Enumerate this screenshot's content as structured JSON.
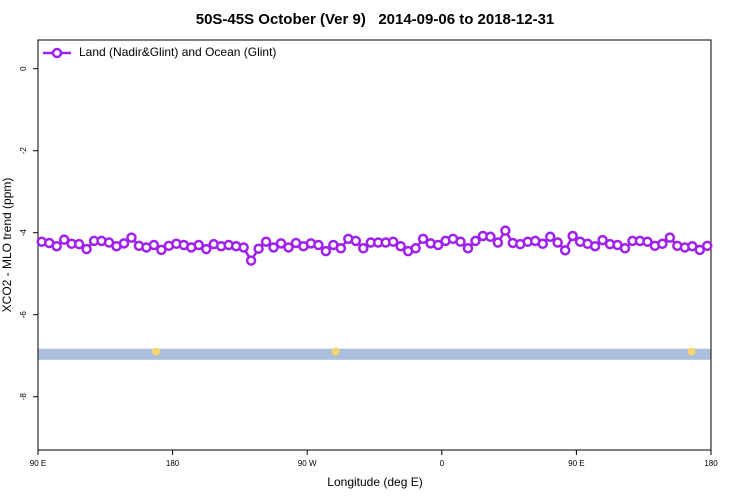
{
  "chart_data": {
    "type": "line",
    "title": "50S-45S October (Ver 9)   2014-09-06 to 2018-12-31",
    "x_label": "Longitude (deg E)",
    "y_label": "XCO2 - MLO trend (ppm)",
    "xlim": [
      90,
      540
    ],
    "xticks": [
      {
        "value": 90,
        "label": "90 E"
      },
      180,
      {
        "value": 270,
        "label": "90 W"
      },
      {
        "value": 360,
        "label": "0"
      },
      {
        "value": 450,
        "label": "90 E"
      },
      {
        "value": 540,
        "label": "180"
      }
    ],
    "ylim": [
      -9.3,
      0.7
    ],
    "yticks": [
      0,
      -2,
      -4,
      -6,
      -8
    ],
    "legend": "top-left",
    "x": [
      92.5,
      97.5,
      102.5,
      107.5,
      112.5,
      117.5,
      122.5,
      127.5,
      132.5,
      137.5,
      142.5,
      147.5,
      152.5,
      157.5,
      162.5,
      167.5,
      172.5,
      177.5,
      182.5,
      187.5,
      192.5,
      197.5,
      202.5,
      207.5,
      212.5,
      217.5,
      222.5,
      227.5,
      232.5,
      237.5,
      242.5,
      247.5,
      252.5,
      257.5,
      262.5,
      267.5,
      272.5,
      277.5,
      282.5,
      287.5,
      292.5,
      297.5,
      302.5,
      307.5,
      312.5,
      317.5,
      322.5,
      327.5,
      332.5,
      337.5,
      342.5,
      347.5,
      352.5,
      357.5,
      362.5,
      367.5,
      372.5,
      377.5,
      382.5,
      387.5,
      392.5,
      397.5,
      402.5,
      407.5,
      412.5,
      417.5,
      422.5,
      427.5,
      432.5,
      437.5,
      442.5,
      447.5,
      452.5,
      457.5,
      462.5,
      467.5,
      472.5,
      477.5,
      482.5,
      487.5,
      492.5,
      497.5,
      502.5,
      507.5,
      512.5,
      517.5,
      522.5,
      527.5,
      532.5,
      537.5
    ],
    "series": [
      {
        "name": "Land (Nadir&Glint) and Ocean (Glint)",
        "color": "#a020f0",
        "values": [
          -4.22,
          -4.25,
          -4.33,
          -4.17,
          -4.27,
          -4.28,
          -4.4,
          -4.2,
          -4.2,
          -4.24,
          -4.33,
          -4.26,
          -4.12,
          -4.32,
          -4.36,
          -4.3,
          -4.42,
          -4.32,
          -4.27,
          -4.3,
          -4.36,
          -4.3,
          -4.4,
          -4.28,
          -4.33,
          -4.3,
          -4.33,
          -4.36,
          -4.68,
          -4.39,
          -4.22,
          -4.36,
          -4.26,
          -4.36,
          -4.25,
          -4.33,
          -4.26,
          -4.3,
          -4.45,
          -4.3,
          -4.38,
          -4.15,
          -4.2,
          -4.38,
          -4.24,
          -4.24,
          -4.24,
          -4.22,
          -4.33,
          -4.45,
          -4.38,
          -4.15,
          -4.26,
          -4.3,
          -4.2,
          -4.15,
          -4.22,
          -4.38,
          -4.2,
          -4.08,
          -4.1,
          -4.24,
          -3.95,
          -4.25,
          -4.28,
          -4.22,
          -4.2,
          -4.27,
          -4.1,
          -4.24,
          -4.43,
          -4.08,
          -4.22,
          -4.27,
          -4.33,
          -4.18,
          -4.28,
          -4.3,
          -4.38,
          -4.2,
          -4.2,
          -4.22,
          -4.32,
          -4.27,
          -4.12,
          -4.32,
          -4.36,
          -4.33,
          -4.42,
          -4.32
        ]
      }
    ],
    "band": {
      "range": [
        -6.83,
        -7.1
      ],
      "color": "#a9bfdc"
    },
    "land": {
      "color": "#f5d76e",
      "x": [
        169,
        289,
        527
      ],
      "y": [
        -6.9,
        -6.9,
        -6.9
      ]
    }
  }
}
